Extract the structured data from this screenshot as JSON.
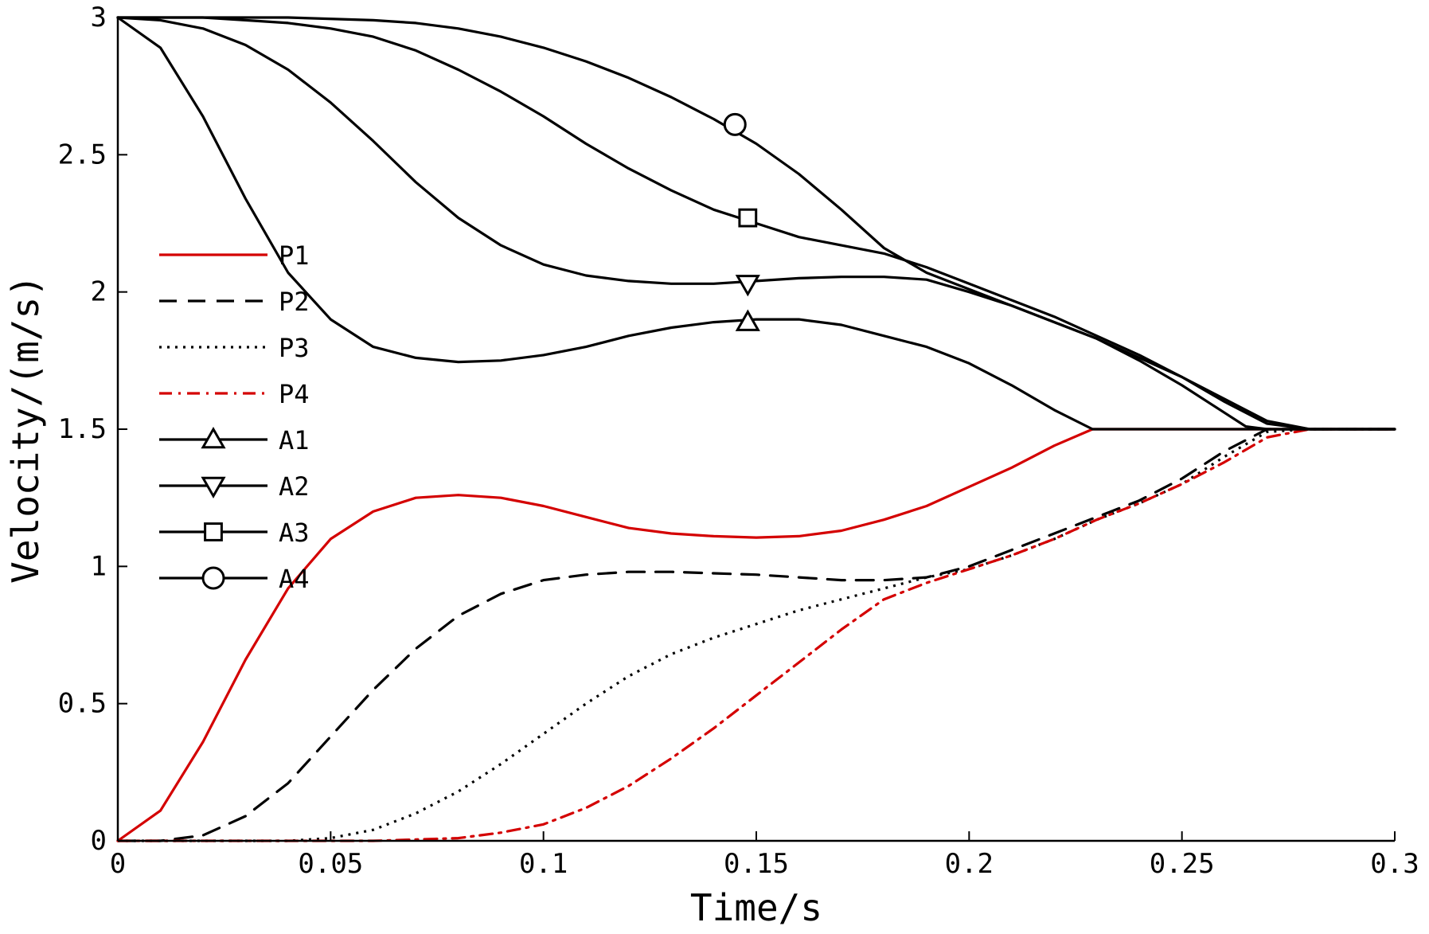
{
  "chart_data": {
    "type": "line",
    "title": "",
    "xlabel": "Time/s",
    "ylabel": "Velocity/(m/s)",
    "xlim": [
      0,
      0.3
    ],
    "ylim": [
      0,
      3
    ],
    "xticks": [
      0,
      0.05,
      0.1,
      0.15,
      0.2,
      0.25,
      0.3
    ],
    "xtick_labels": [
      "0",
      "0.05",
      "0.1",
      "0.15",
      "0.2",
      "0.25",
      "0.3"
    ],
    "yticks": [
      0,
      0.5,
      1,
      1.5,
      2,
      2.5,
      3
    ],
    "ytick_labels": [
      "0",
      "0.5",
      "1",
      "1.5",
      "2",
      "2.5",
      "3"
    ],
    "grid": false,
    "legend_position": "left",
    "series": [
      {
        "name": "P1",
        "color": "#d40000",
        "dash": "solid",
        "marker": "none",
        "x": [
          0,
          0.01,
          0.02,
          0.03,
          0.04,
          0.05,
          0.06,
          0.07,
          0.08,
          0.09,
          0.1,
          0.11,
          0.12,
          0.13,
          0.14,
          0.15,
          0.16,
          0.17,
          0.18,
          0.19,
          0.2,
          0.21,
          0.22,
          0.229,
          0.24,
          0.25,
          0.26,
          0.27,
          0.28,
          0.29,
          0.3
        ],
        "y": [
          0,
          0.11,
          0.36,
          0.66,
          0.92,
          1.1,
          1.2,
          1.25,
          1.26,
          1.25,
          1.22,
          1.18,
          1.14,
          1.12,
          1.11,
          1.105,
          1.11,
          1.13,
          1.17,
          1.22,
          1.29,
          1.36,
          1.44,
          1.5,
          1.5,
          1.5,
          1.5,
          1.5,
          1.5,
          1.5,
          1.5
        ]
      },
      {
        "name": "P2",
        "color": "#000000",
        "dash": "dashed",
        "marker": "none",
        "x": [
          0,
          0.01,
          0.02,
          0.03,
          0.04,
          0.05,
          0.06,
          0.07,
          0.08,
          0.09,
          0.1,
          0.11,
          0.12,
          0.13,
          0.14,
          0.15,
          0.16,
          0.17,
          0.18,
          0.19,
          0.2,
          0.21,
          0.22,
          0.23,
          0.24,
          0.25,
          0.26,
          0.27,
          0.28,
          0.29,
          0.3
        ],
        "y": [
          0,
          0,
          0.02,
          0.09,
          0.21,
          0.38,
          0.55,
          0.7,
          0.82,
          0.9,
          0.95,
          0.97,
          0.98,
          0.98,
          0.975,
          0.97,
          0.96,
          0.95,
          0.95,
          0.96,
          1.0,
          1.06,
          1.12,
          1.18,
          1.24,
          1.32,
          1.42,
          1.5,
          1.5,
          1.5,
          1.5
        ]
      },
      {
        "name": "P3",
        "color": "#000000",
        "dash": "dotted",
        "marker": "none",
        "x": [
          0,
          0.02,
          0.04,
          0.05,
          0.06,
          0.07,
          0.08,
          0.09,
          0.1,
          0.11,
          0.12,
          0.13,
          0.14,
          0.15,
          0.16,
          0.17,
          0.18,
          0.19,
          0.2,
          0.21,
          0.22,
          0.23,
          0.24,
          0.25,
          0.26,
          0.27,
          0.28,
          0.29,
          0.3
        ],
        "y": [
          0,
          0,
          0,
          0.01,
          0.04,
          0.1,
          0.18,
          0.28,
          0.39,
          0.5,
          0.6,
          0.68,
          0.74,
          0.79,
          0.84,
          0.88,
          0.92,
          0.96,
          0.99,
          1.04,
          1.1,
          1.17,
          1.23,
          1.3,
          1.4,
          1.49,
          1.5,
          1.5,
          1.5
        ]
      },
      {
        "name": "P4",
        "color": "#d40000",
        "dash": "dashdot",
        "marker": "none",
        "x": [
          0,
          0.02,
          0.04,
          0.06,
          0.08,
          0.09,
          0.1,
          0.11,
          0.12,
          0.13,
          0.14,
          0.15,
          0.16,
          0.17,
          0.18,
          0.19,
          0.2,
          0.21,
          0.22,
          0.23,
          0.24,
          0.25,
          0.26,
          0.27,
          0.28,
          0.29,
          0.3
        ],
        "y": [
          0,
          0,
          0,
          0,
          0.01,
          0.03,
          0.06,
          0.12,
          0.2,
          0.3,
          0.41,
          0.53,
          0.65,
          0.77,
          0.88,
          0.94,
          0.99,
          1.04,
          1.1,
          1.17,
          1.23,
          1.3,
          1.38,
          1.47,
          1.5,
          1.5,
          1.5
        ]
      },
      {
        "name": "A1",
        "color": "#000000",
        "dash": "solid",
        "marker": "triangle-up",
        "marker_x": 0.148,
        "marker_y": 1.89,
        "x": [
          0,
          0.01,
          0.02,
          0.03,
          0.04,
          0.05,
          0.06,
          0.07,
          0.08,
          0.09,
          0.1,
          0.11,
          0.12,
          0.13,
          0.14,
          0.15,
          0.16,
          0.17,
          0.18,
          0.19,
          0.2,
          0.21,
          0.22,
          0.229,
          0.24,
          0.25,
          0.26,
          0.27,
          0.28,
          0.29,
          0.3
        ],
        "y": [
          3.0,
          2.89,
          2.64,
          2.34,
          2.07,
          1.9,
          1.8,
          1.76,
          1.745,
          1.75,
          1.77,
          1.8,
          1.84,
          1.87,
          1.89,
          1.9,
          1.9,
          1.88,
          1.84,
          1.8,
          1.74,
          1.66,
          1.57,
          1.5,
          1.5,
          1.5,
          1.5,
          1.5,
          1.5,
          1.5,
          1.5
        ]
      },
      {
        "name": "A2",
        "color": "#000000",
        "dash": "solid",
        "marker": "triangle-down",
        "marker_x": 0.148,
        "marker_y": 2.03,
        "x": [
          0,
          0.01,
          0.02,
          0.03,
          0.04,
          0.05,
          0.06,
          0.07,
          0.08,
          0.09,
          0.1,
          0.11,
          0.12,
          0.13,
          0.14,
          0.15,
          0.16,
          0.17,
          0.18,
          0.19,
          0.2,
          0.21,
          0.22,
          0.23,
          0.24,
          0.25,
          0.26,
          0.265,
          0.27,
          0.28,
          0.29,
          0.3
        ],
        "y": [
          3.0,
          2.99,
          2.96,
          2.9,
          2.81,
          2.69,
          2.55,
          2.4,
          2.27,
          2.17,
          2.1,
          2.06,
          2.04,
          2.03,
          2.03,
          2.04,
          2.05,
          2.055,
          2.055,
          2.045,
          2.0,
          1.95,
          1.89,
          1.83,
          1.75,
          1.66,
          1.56,
          1.51,
          1.5,
          1.5,
          1.5,
          1.5
        ]
      },
      {
        "name": "A3",
        "color": "#000000",
        "dash": "solid",
        "marker": "square",
        "marker_x": 0.148,
        "marker_y": 2.27,
        "x": [
          0,
          0.02,
          0.03,
          0.04,
          0.05,
          0.06,
          0.07,
          0.08,
          0.09,
          0.1,
          0.11,
          0.12,
          0.13,
          0.14,
          0.15,
          0.16,
          0.17,
          0.18,
          0.19,
          0.2,
          0.21,
          0.22,
          0.23,
          0.24,
          0.25,
          0.26,
          0.27,
          0.28,
          0.29,
          0.3
        ],
        "y": [
          3.0,
          3.0,
          2.99,
          2.98,
          2.96,
          2.93,
          2.88,
          2.81,
          2.73,
          2.64,
          2.54,
          2.45,
          2.37,
          2.3,
          2.25,
          2.2,
          2.17,
          2.14,
          2.09,
          2.03,
          1.97,
          1.91,
          1.84,
          1.77,
          1.69,
          1.6,
          1.52,
          1.5,
          1.5,
          1.5
        ]
      },
      {
        "name": "A4",
        "color": "#000000",
        "dash": "solid",
        "marker": "circle",
        "marker_x": 0.145,
        "marker_y": 2.61,
        "x": [
          0,
          0.02,
          0.04,
          0.06,
          0.07,
          0.08,
          0.09,
          0.1,
          0.11,
          0.12,
          0.13,
          0.14,
          0.15,
          0.16,
          0.17,
          0.18,
          0.19,
          0.2,
          0.21,
          0.22,
          0.23,
          0.24,
          0.25,
          0.26,
          0.27,
          0.28,
          0.29,
          0.3
        ],
        "y": [
          3.0,
          3.0,
          3.0,
          2.99,
          2.98,
          2.96,
          2.93,
          2.89,
          2.84,
          2.78,
          2.71,
          2.63,
          2.54,
          2.43,
          2.3,
          2.16,
          2.07,
          2.01,
          1.95,
          1.89,
          1.83,
          1.76,
          1.69,
          1.61,
          1.53,
          1.5,
          1.5,
          1.5
        ]
      }
    ]
  }
}
